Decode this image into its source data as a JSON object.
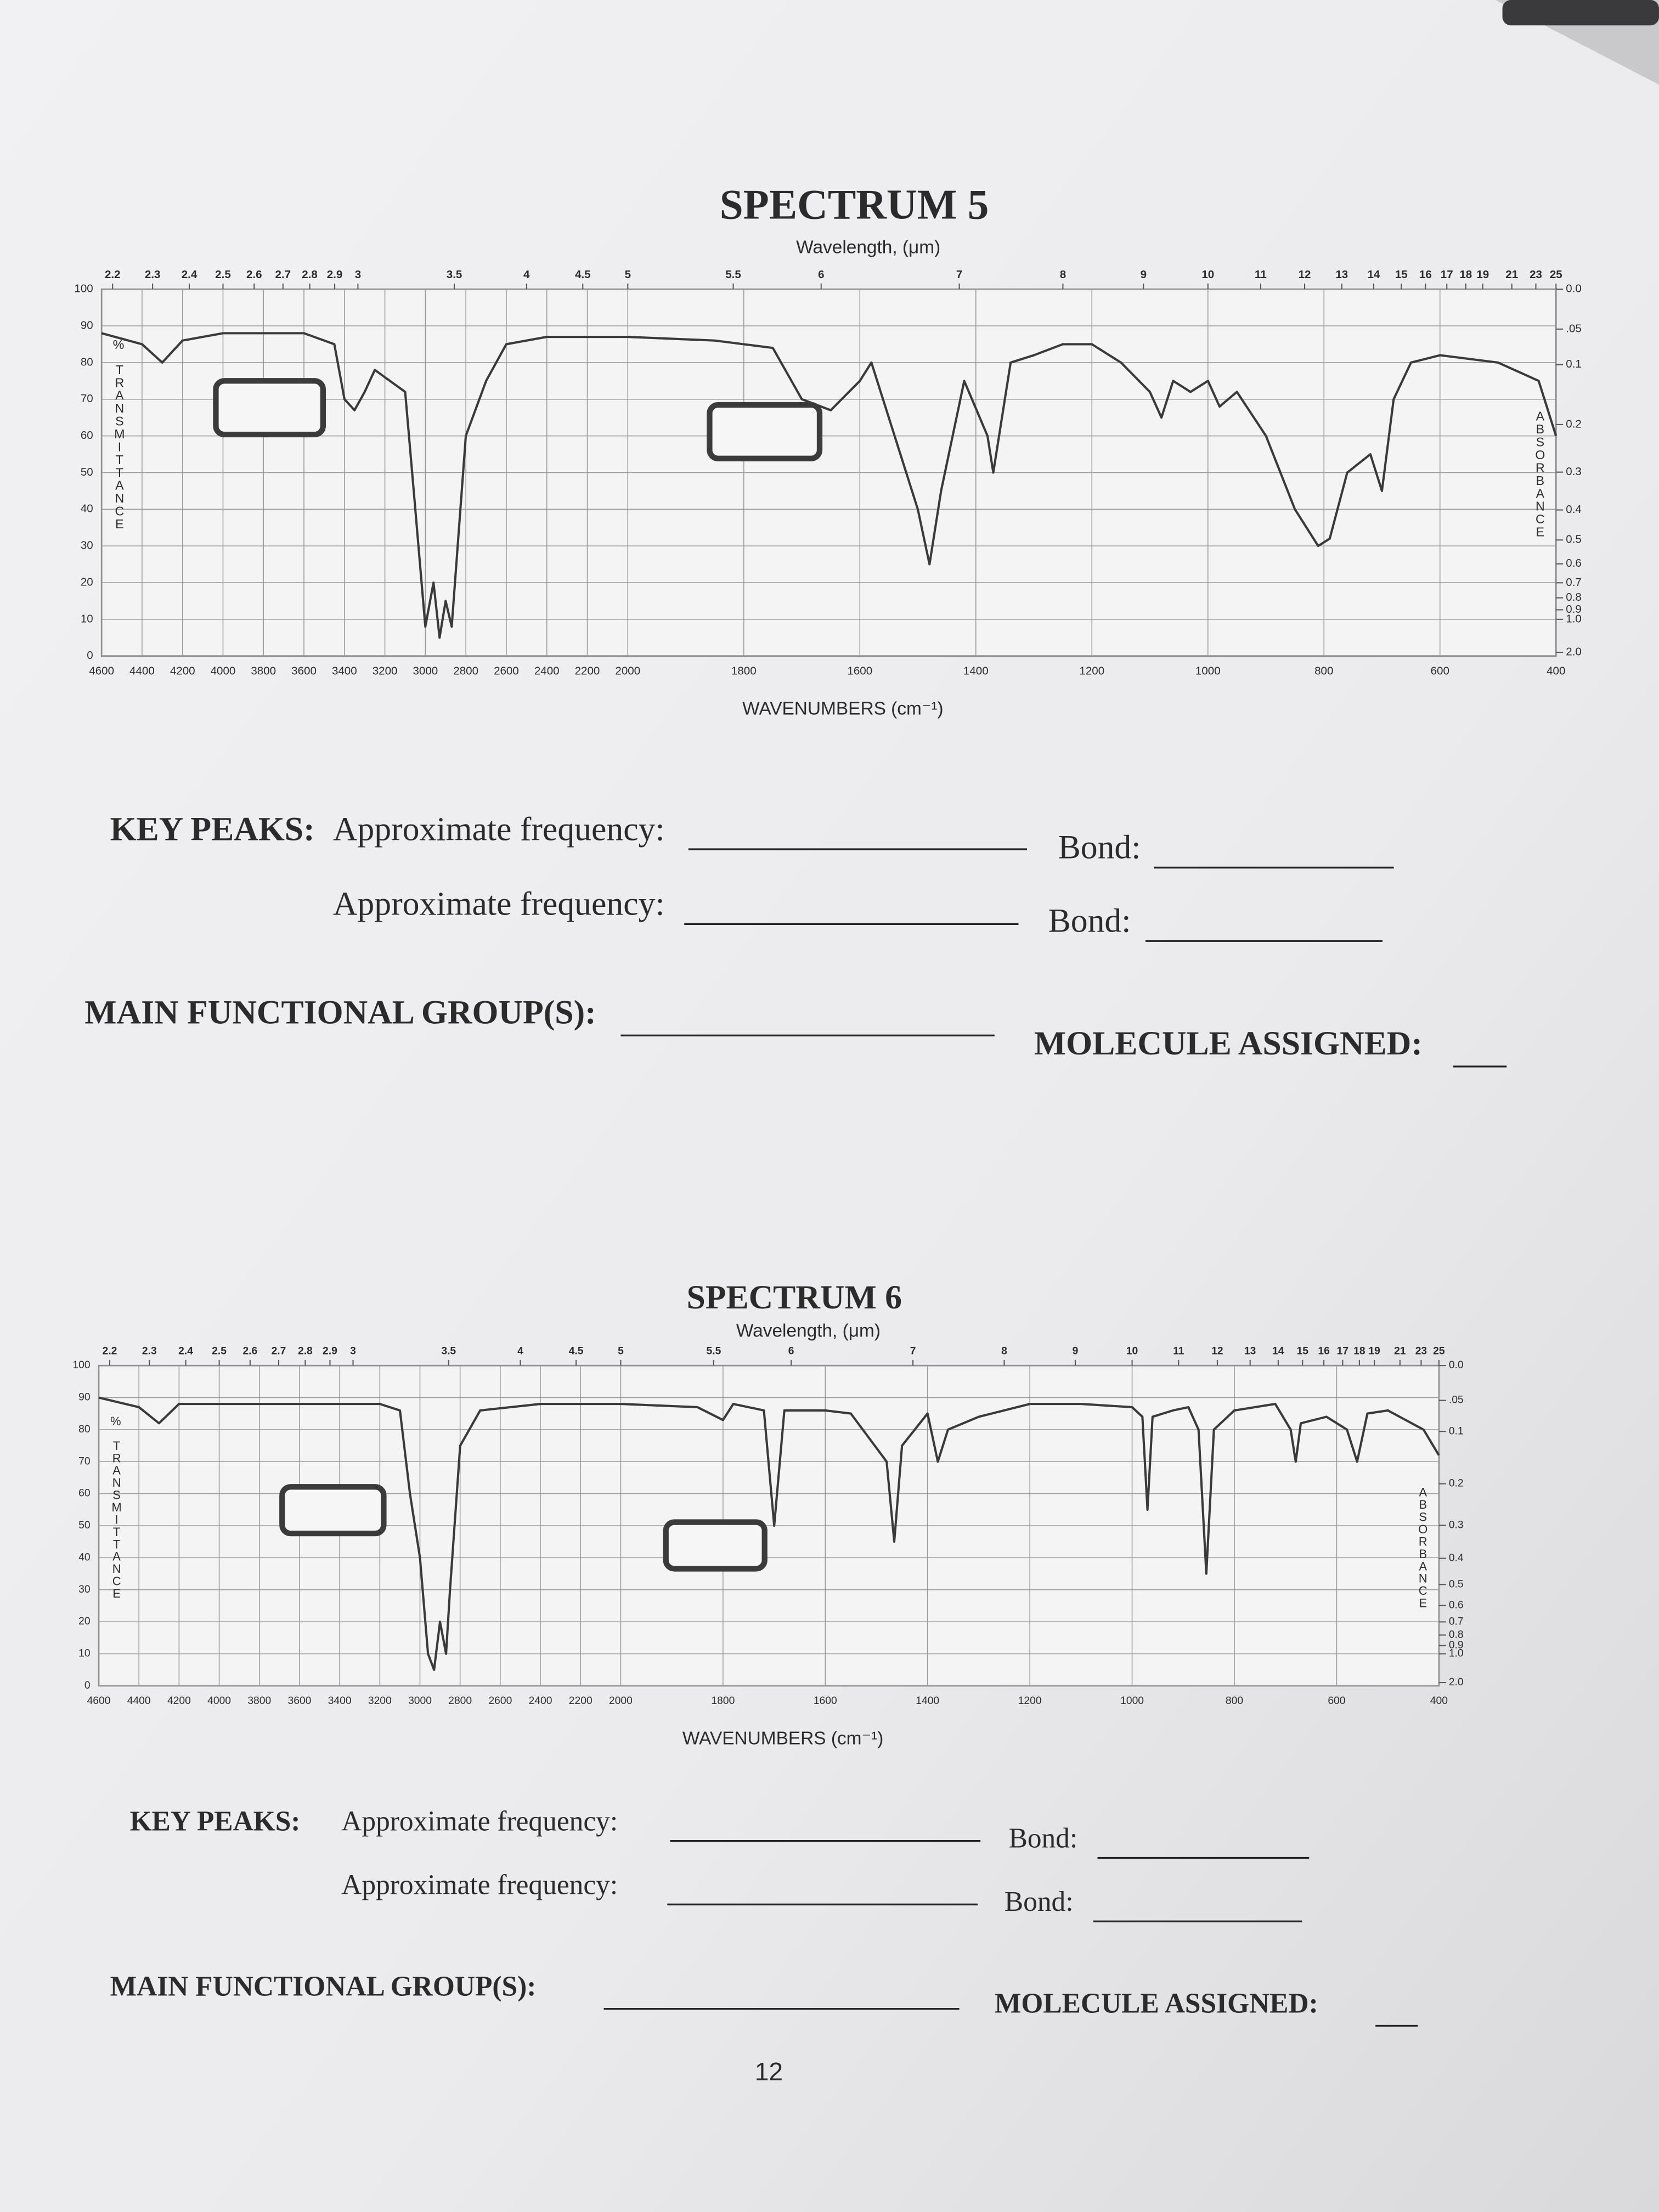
{
  "chart_data": [
    {
      "type": "line",
      "title": "SPECTRUM 5",
      "x2_label": "Wavelength, (μm)",
      "xlabel": "WAVENUMBERS (cm⁻¹)",
      "ylabel": "TRANSMITTANCE",
      "ylabel_unit": "%",
      "y2label": "ABSORBANCE",
      "xlim": [
        4600,
        400
      ],
      "xbreak": 2000,
      "xticks": [
        4600,
        4400,
        4200,
        4000,
        3800,
        3600,
        3400,
        3200,
        3000,
        2800,
        2600,
        2400,
        2200,
        2000,
        1800,
        1600,
        1400,
        1200,
        1000,
        800,
        600,
        400
      ],
      "x2ticks": [
        2.2,
        2.3,
        2.4,
        2.5,
        2.6,
        2.7,
        2.8,
        2.9,
        3,
        3.5,
        4,
        4.5,
        5,
        5.5,
        6,
        7,
        8,
        9,
        10,
        11,
        12,
        13,
        14,
        15,
        16,
        17,
        18,
        19,
        21,
        23,
        25
      ],
      "ylim": [
        0,
        100
      ],
      "yticks": [
        0,
        10,
        20,
        30,
        40,
        50,
        60,
        70,
        80,
        90,
        100
      ],
      "y2ticks": [
        {
          "value": 0,
          "label": "0.0"
        },
        {
          "value": 0.05,
          "label": ".05"
        },
        0.1,
        0.2,
        0.3,
        0.4,
        0.5,
        0.6,
        0.7,
        0.8,
        0.9,
        {
          "value": 1,
          "label": "1.0"
        },
        {
          "value": 2,
          "label": "2.0"
        }
      ],
      "color": "#3a3a3a",
      "grid": true,
      "x": [
        4600,
        4400,
        4300,
        4200,
        4000,
        3800,
        3600,
        3450,
        3400,
        3350,
        3300,
        3250,
        3200,
        3100,
        3050,
        3000,
        2960,
        2930,
        2900,
        2870,
        2800,
        2700,
        2600,
        2400,
        2200,
        2000,
        1850,
        1750,
        1700,
        1650,
        1600,
        1580,
        1500,
        1480,
        1460,
        1420,
        1380,
        1370,
        1340,
        1300,
        1250,
        1200,
        1150,
        1100,
        1080,
        1060,
        1030,
        1000,
        980,
        950,
        900,
        850,
        810,
        790,
        760,
        720,
        700,
        680,
        650,
        600,
        500,
        430,
        400
      ],
      "values": [
        88,
        85,
        80,
        86,
        88,
        88,
        88,
        85,
        70,
        67,
        72,
        78,
        76,
        72,
        40,
        8,
        20,
        5,
        15,
        8,
        60,
        75,
        85,
        87,
        87,
        87,
        86,
        84,
        70,
        67,
        75,
        80,
        40,
        25,
        45,
        75,
        60,
        50,
        80,
        82,
        85,
        85,
        80,
        72,
        65,
        75,
        72,
        75,
        68,
        72,
        60,
        40,
        30,
        32,
        50,
        55,
        45,
        70,
        80,
        82,
        80,
        75,
        60
      ]
    },
    {
      "type": "line",
      "title": "SPECTRUM 6",
      "x2_label": "Wavelength, (μm)",
      "xlabel": "WAVENUMBERS (cm⁻¹)",
      "ylabel": "TRANSMITTANCE",
      "ylabel_unit": "%",
      "y2label": "ABSORBANCE",
      "xlim": [
        4600,
        400
      ],
      "xbreak": 2000,
      "xticks": [
        4600,
        4400,
        4200,
        4000,
        3800,
        3600,
        3400,
        3200,
        3000,
        2800,
        2600,
        2400,
        2200,
        2000,
        1800,
        1600,
        1400,
        1200,
        1000,
        800,
        600,
        400
      ],
      "x2ticks": [
        2.2,
        2.3,
        2.4,
        2.5,
        2.6,
        2.7,
        2.8,
        2.9,
        3,
        3.5,
        4,
        4.5,
        5,
        5.5,
        6,
        7,
        8,
        9,
        10,
        11,
        12,
        13,
        14,
        15,
        16,
        17,
        18,
        19,
        21,
        23,
        25
      ],
      "ylim": [
        0,
        100
      ],
      "yticks": [
        0,
        10,
        20,
        30,
        40,
        50,
        60,
        70,
        80,
        90,
        100
      ],
      "y2ticks": [
        {
          "value": 0,
          "label": "0.0"
        },
        {
          "value": 0.05,
          "label": ".05"
        },
        0.1,
        0.2,
        0.3,
        0.4,
        0.5,
        0.6,
        0.7,
        0.8,
        0.9,
        {
          "value": 1,
          "label": "1.0"
        },
        {
          "value": 2,
          "label": "2.0"
        }
      ],
      "color": "#3a3a3a",
      "grid": true,
      "x": [
        4600,
        4400,
        4300,
        4200,
        3600,
        3200,
        3100,
        3050,
        3000,
        2960,
        2930,
        2900,
        2870,
        2850,
        2800,
        2700,
        2400,
        2000,
        1850,
        1800,
        1780,
        1720,
        1700,
        1680,
        1600,
        1550,
        1480,
        1465,
        1450,
        1400,
        1380,
        1360,
        1300,
        1200,
        1100,
        1000,
        980,
        970,
        960,
        920,
        890,
        870,
        855,
        840,
        800,
        720,
        690,
        680,
        670,
        620,
        580,
        560,
        540,
        500,
        430,
        400
      ],
      "values": [
        90,
        87,
        82,
        88,
        88,
        88,
        86,
        60,
        40,
        10,
        5,
        20,
        10,
        30,
        75,
        86,
        88,
        88,
        87,
        83,
        88,
        86,
        50,
        86,
        86,
        85,
        70,
        45,
        75,
        85,
        70,
        80,
        84,
        88,
        88,
        87,
        84,
        55,
        84,
        86,
        87,
        80,
        35,
        80,
        86,
        88,
        80,
        70,
        82,
        84,
        80,
        70,
        85,
        86,
        80,
        72
      ]
    }
  ],
  "forms": [
    {
      "key_peaks_label": "KEY PEAKS:",
      "rows": [
        {
          "frequency_label": "Approximate frequency:",
          "bond_label": "Bond:"
        },
        {
          "frequency_label": "Approximate frequency:",
          "bond_label": "Bond:"
        }
      ],
      "functional_group_label": "MAIN FUNCTIONAL GROUP(S):",
      "molecule_label": "MOLECULE ASSIGNED:"
    },
    {
      "key_peaks_label": "KEY PEAKS:",
      "rows": [
        {
          "frequency_label": "Approximate frequency:",
          "bond_label": "Bond:"
        },
        {
          "frequency_label": "Approximate frequency:",
          "bond_label": "Bond:"
        }
      ],
      "functional_group_label": "MAIN FUNCTIONAL GROUP(S):",
      "molecule_label": "MOLECULE ASSIGNED:"
    }
  ],
  "page_number": "12"
}
